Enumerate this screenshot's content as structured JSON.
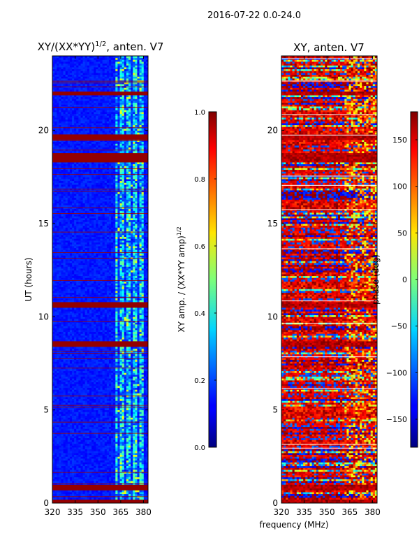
{
  "suptitle": "2016-07-22 0.0-24.0",
  "shared_xlabel": "frequency (MHz)",
  "chart_data": [
    {
      "type": "heatmap",
      "title_main": "XY/(XX*YY)",
      "title_sup": "1/2",
      "title_rest": ", anten. V7",
      "xlabel": "",
      "ylabel": "UT (hours)",
      "xlim": [
        320,
        383
      ],
      "ylim": [
        0,
        24
      ],
      "xticks": [
        "320",
        "335",
        "350",
        "365",
        "380"
      ],
      "xtick_values": [
        320,
        335,
        350,
        365,
        380
      ],
      "yticks": [
        "0",
        "5",
        "10",
        "15",
        "20"
      ],
      "ytick_values": [
        0,
        5,
        10,
        15,
        20
      ],
      "colorbar": {
        "label_main": "XY amp. / (XX*YY amp)",
        "label_sup": "1/2",
        "range": [
          0.0,
          1.0
        ],
        "ticks": [
          "0.0",
          "0.2",
          "0.4",
          "0.6",
          "0.8",
          "1.0"
        ],
        "tick_values": [
          0.0,
          0.2,
          0.4,
          0.6,
          0.8,
          1.0
        ],
        "colormap": "jet"
      },
      "flagged_bands_hours": [
        [
          0.05,
          0.2
        ],
        [
          0.75,
          1.0
        ],
        [
          8.4,
          8.7
        ],
        [
          10.5,
          10.8
        ],
        [
          18.3,
          18.75
        ],
        [
          19.55,
          19.8
        ],
        [
          21.9,
          22.05
        ]
      ]
    },
    {
      "type": "heatmap",
      "title_main": "XY, anten. V7",
      "xlabel": "frequency (MHz)",
      "ylabel": "",
      "xlim": [
        320,
        383
      ],
      "ylim": [
        0,
        24
      ],
      "xticks": [
        "320",
        "335",
        "350",
        "365",
        "380"
      ],
      "xtick_values": [
        320,
        335,
        350,
        365,
        380
      ],
      "yticks": [
        "0",
        "5",
        "10",
        "15",
        "20"
      ],
      "ytick_values": [
        0,
        5,
        10,
        15,
        20
      ],
      "colorbar": {
        "label": "phase (deg)",
        "range": [
          -180,
          180
        ],
        "ticks": [
          "−150",
          "−100",
          "−50",
          "0",
          "50",
          "100",
          "150"
        ],
        "tick_values": [
          -150,
          -100,
          -50,
          0,
          50,
          100,
          150
        ],
        "colormap": "jet"
      }
    }
  ]
}
